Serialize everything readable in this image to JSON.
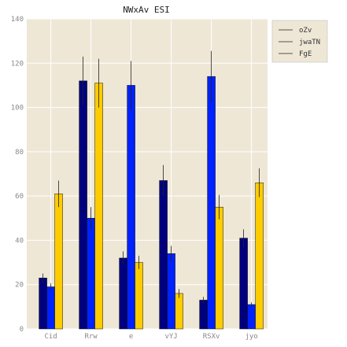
{
  "chart_data": {
    "type": "bar",
    "title": "NWxAv ESI",
    "xlabel": "",
    "ylabel": "",
    "categories": [
      "Cid",
      "Rrw",
      "e",
      "vYJ",
      "RSXv",
      "jyo"
    ],
    "ylim": [
      0,
      140
    ],
    "yticks": [
      0,
      20,
      40,
      60,
      80,
      100,
      120,
      140
    ],
    "grid": true,
    "legend_position": "right",
    "colors": {
      "background": "#efe7d6",
      "grid": "#ffffff",
      "errorbar": "#222222"
    },
    "series": [
      {
        "name": "oZv",
        "color": "#00007f",
        "values": [
          23,
          112,
          32,
          67,
          13,
          41
        ],
        "errors": [
          2,
          11,
          3,
          7,
          1.5,
          4
        ]
      },
      {
        "name": "jwaTN",
        "color": "#0022ff",
        "values": [
          19,
          50,
          110,
          34,
          114,
          11
        ],
        "errors": [
          1.5,
          5,
          11,
          3.5,
          11.5,
          1
        ]
      },
      {
        "name": "FgE",
        "color": "#ffcc00",
        "values": [
          61,
          111,
          30,
          16,
          55,
          66
        ],
        "errors": [
          6,
          11,
          3,
          2,
          5.5,
          6.5
        ]
      }
    ]
  }
}
